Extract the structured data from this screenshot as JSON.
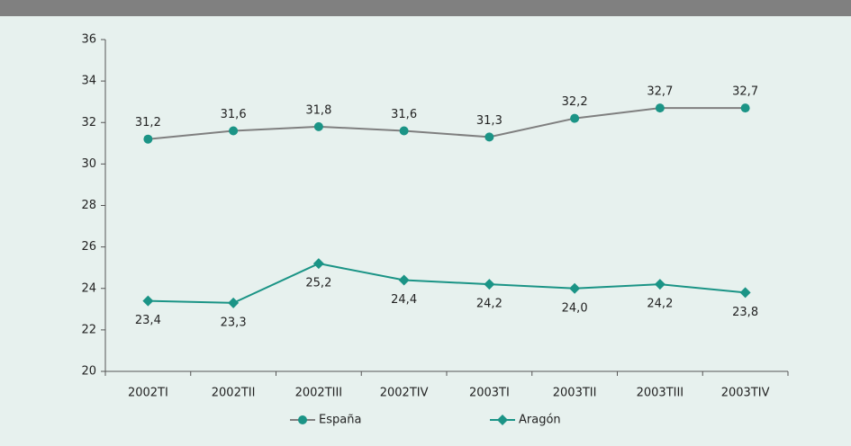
{
  "chart_data": {
    "type": "line",
    "categories": [
      "2002TI",
      "2002TII",
      "2002TIII",
      "2002TIV",
      "2003TI",
      "2003TII",
      "2003TIII",
      "2003TIV"
    ],
    "series": [
      {
        "name": "España",
        "color": "#1b9486",
        "line_color": "#7f7f7f",
        "marker": "circle",
        "values": [
          31.2,
          31.6,
          31.8,
          31.6,
          31.3,
          32.2,
          32.7,
          32.7
        ],
        "value_labels": [
          "31,2",
          "31,6",
          "31,8",
          "31,6",
          "31,3",
          "32,2",
          "32,7",
          "32,7"
        ],
        "label_position": "above"
      },
      {
        "name": "Aragón",
        "color": "#1b9486",
        "line_color": "#1b9486",
        "marker": "diamond",
        "values": [
          23.4,
          23.3,
          25.2,
          24.4,
          24.2,
          24.0,
          24.2,
          23.8
        ],
        "value_labels": [
          "23,4",
          "23,3",
          "25,2",
          "24,4",
          "24,2",
          "24,0",
          "24,2",
          "23,8"
        ],
        "label_position": "below"
      }
    ],
    "ylim": [
      20,
      36
    ],
    "yticks": [
      20,
      22,
      24,
      26,
      28,
      30,
      32,
      34,
      36
    ],
    "legend": "bottom"
  }
}
